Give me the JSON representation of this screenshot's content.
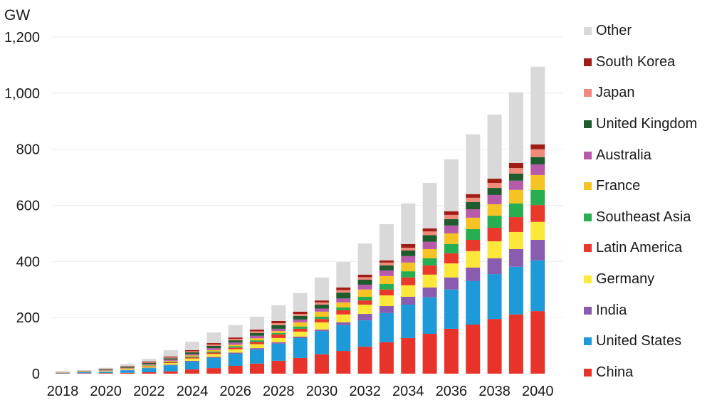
{
  "chart_data": {
    "type": "bar",
    "stacked": true,
    "title": "",
    "ylabel": "GW",
    "xlabel": "",
    "ylim": [
      0,
      1200
    ],
    "yticks": [
      0,
      200,
      400,
      600,
      800,
      1000,
      1200
    ],
    "ytick_labels": [
      "0",
      "200",
      "400",
      "600",
      "800",
      "1,000",
      "1,200"
    ],
    "grid": true,
    "legend_position": "right",
    "categories": [
      "2018",
      "2019",
      "2020",
      "2021",
      "2022",
      "2023",
      "2024",
      "2025",
      "2026",
      "2027",
      "2028",
      "2029",
      "2030",
      "2031",
      "2032",
      "2033",
      "2034",
      "2035",
      "2036",
      "2037",
      "2038",
      "2039",
      "2040"
    ],
    "xtick_labels": [
      "2018",
      "2020",
      "2022",
      "2024",
      "2026",
      "2028",
      "2030",
      "2032",
      "2034",
      "2036",
      "2038",
      "2040"
    ],
    "series": [
      {
        "name": "China",
        "color": "#e8332a",
        "values": [
          1,
          1.5,
          2,
          3,
          5,
          8,
          15,
          20,
          28,
          36,
          46,
          56,
          69,
          81,
          96,
          112,
          127,
          142,
          160,
          175,
          195,
          211,
          223
        ]
      },
      {
        "name": "United States",
        "color": "#1f9ad8",
        "values": [
          2,
          3.5,
          5,
          9,
          15,
          22,
          28,
          36,
          43,
          50,
          61,
          71,
          83,
          92,
          94,
          104,
          119,
          130,
          140,
          155,
          160,
          170,
          181
        ]
      },
      {
        "name": "India",
        "color": "#8a5cb0",
        "values": [
          0.5,
          0.5,
          0.5,
          1,
          1.5,
          2,
          3,
          4,
          4,
          5,
          5,
          5,
          5,
          10,
          23,
          25,
          28,
          35,
          43,
          48,
          56,
          63,
          73
        ]
      },
      {
        "name": "Germany",
        "color": "#fce83a",
        "values": [
          1,
          1.5,
          2.5,
          3,
          4.5,
          6,
          8,
          10,
          12,
          14,
          15,
          18,
          26,
          28,
          33,
          38,
          41,
          46,
          50,
          59,
          61,
          61,
          64
        ]
      },
      {
        "name": "Latin America",
        "color": "#e8392a",
        "values": [
          0.5,
          0.5,
          1,
          1,
          2,
          3,
          4,
          5,
          6,
          8,
          13,
          10,
          12,
          15,
          15,
          21,
          28,
          33,
          36,
          40,
          48,
          53,
          60
        ]
      },
      {
        "name": "Southeast Asia",
        "color": "#27ae50",
        "values": [
          0,
          0.3,
          0.5,
          1,
          1.5,
          2,
          3,
          4,
          5,
          6,
          5,
          8,
          8,
          10,
          13,
          20,
          22,
          25,
          33,
          38,
          43,
          49,
          54
        ]
      },
      {
        "name": "France",
        "color": "#f5c323",
        "values": [
          0.3,
          0.4,
          0.5,
          1,
          1.5,
          3,
          4,
          5,
          5,
          7,
          7,
          15,
          18,
          18,
          26,
          28,
          31,
          33,
          38,
          41,
          41,
          48,
          53
        ]
      },
      {
        "name": "Australia",
        "color": "#b85aaa",
        "values": [
          0.5,
          0.8,
          1.5,
          2,
          3,
          4,
          5,
          7,
          8,
          9,
          8,
          10,
          11,
          14,
          17,
          20,
          23,
          26,
          28,
          30,
          33,
          33,
          38
        ]
      },
      {
        "name": "United Kingdom",
        "color": "#1e5c2e",
        "values": [
          0.5,
          1,
          2,
          3,
          4,
          5,
          6,
          8,
          8,
          10,
          13,
          13,
          14,
          21,
          18,
          18,
          20,
          24,
          23,
          26,
          25,
          25,
          26
        ]
      },
      {
        "name": "Japan",
        "color": "#f08a7a",
        "values": [
          0.3,
          0.6,
          1,
          2,
          2,
          3,
          4,
          5,
          5,
          6,
          7,
          7,
          8,
          9,
          9,
          10,
          10,
          13,
          15,
          15,
          18,
          20,
          28
        ]
      },
      {
        "name": "South Korea",
        "color": "#a01c14",
        "values": [
          0.2,
          0.4,
          1,
          1.5,
          3,
          3,
          4,
          5,
          5,
          6,
          8,
          8,
          7,
          9,
          9,
          8,
          13,
          11,
          13,
          13,
          15,
          18,
          17
        ]
      },
      {
        "name": "Other",
        "color": "#d9d9d9",
        "values": [
          0.2,
          1,
          3.5,
          6.5,
          10,
          23,
          30,
          38,
          44,
          46,
          56,
          66,
          82,
          91,
          111,
          129,
          145,
          162,
          185,
          213,
          229,
          252,
          277
        ]
      }
    ]
  }
}
